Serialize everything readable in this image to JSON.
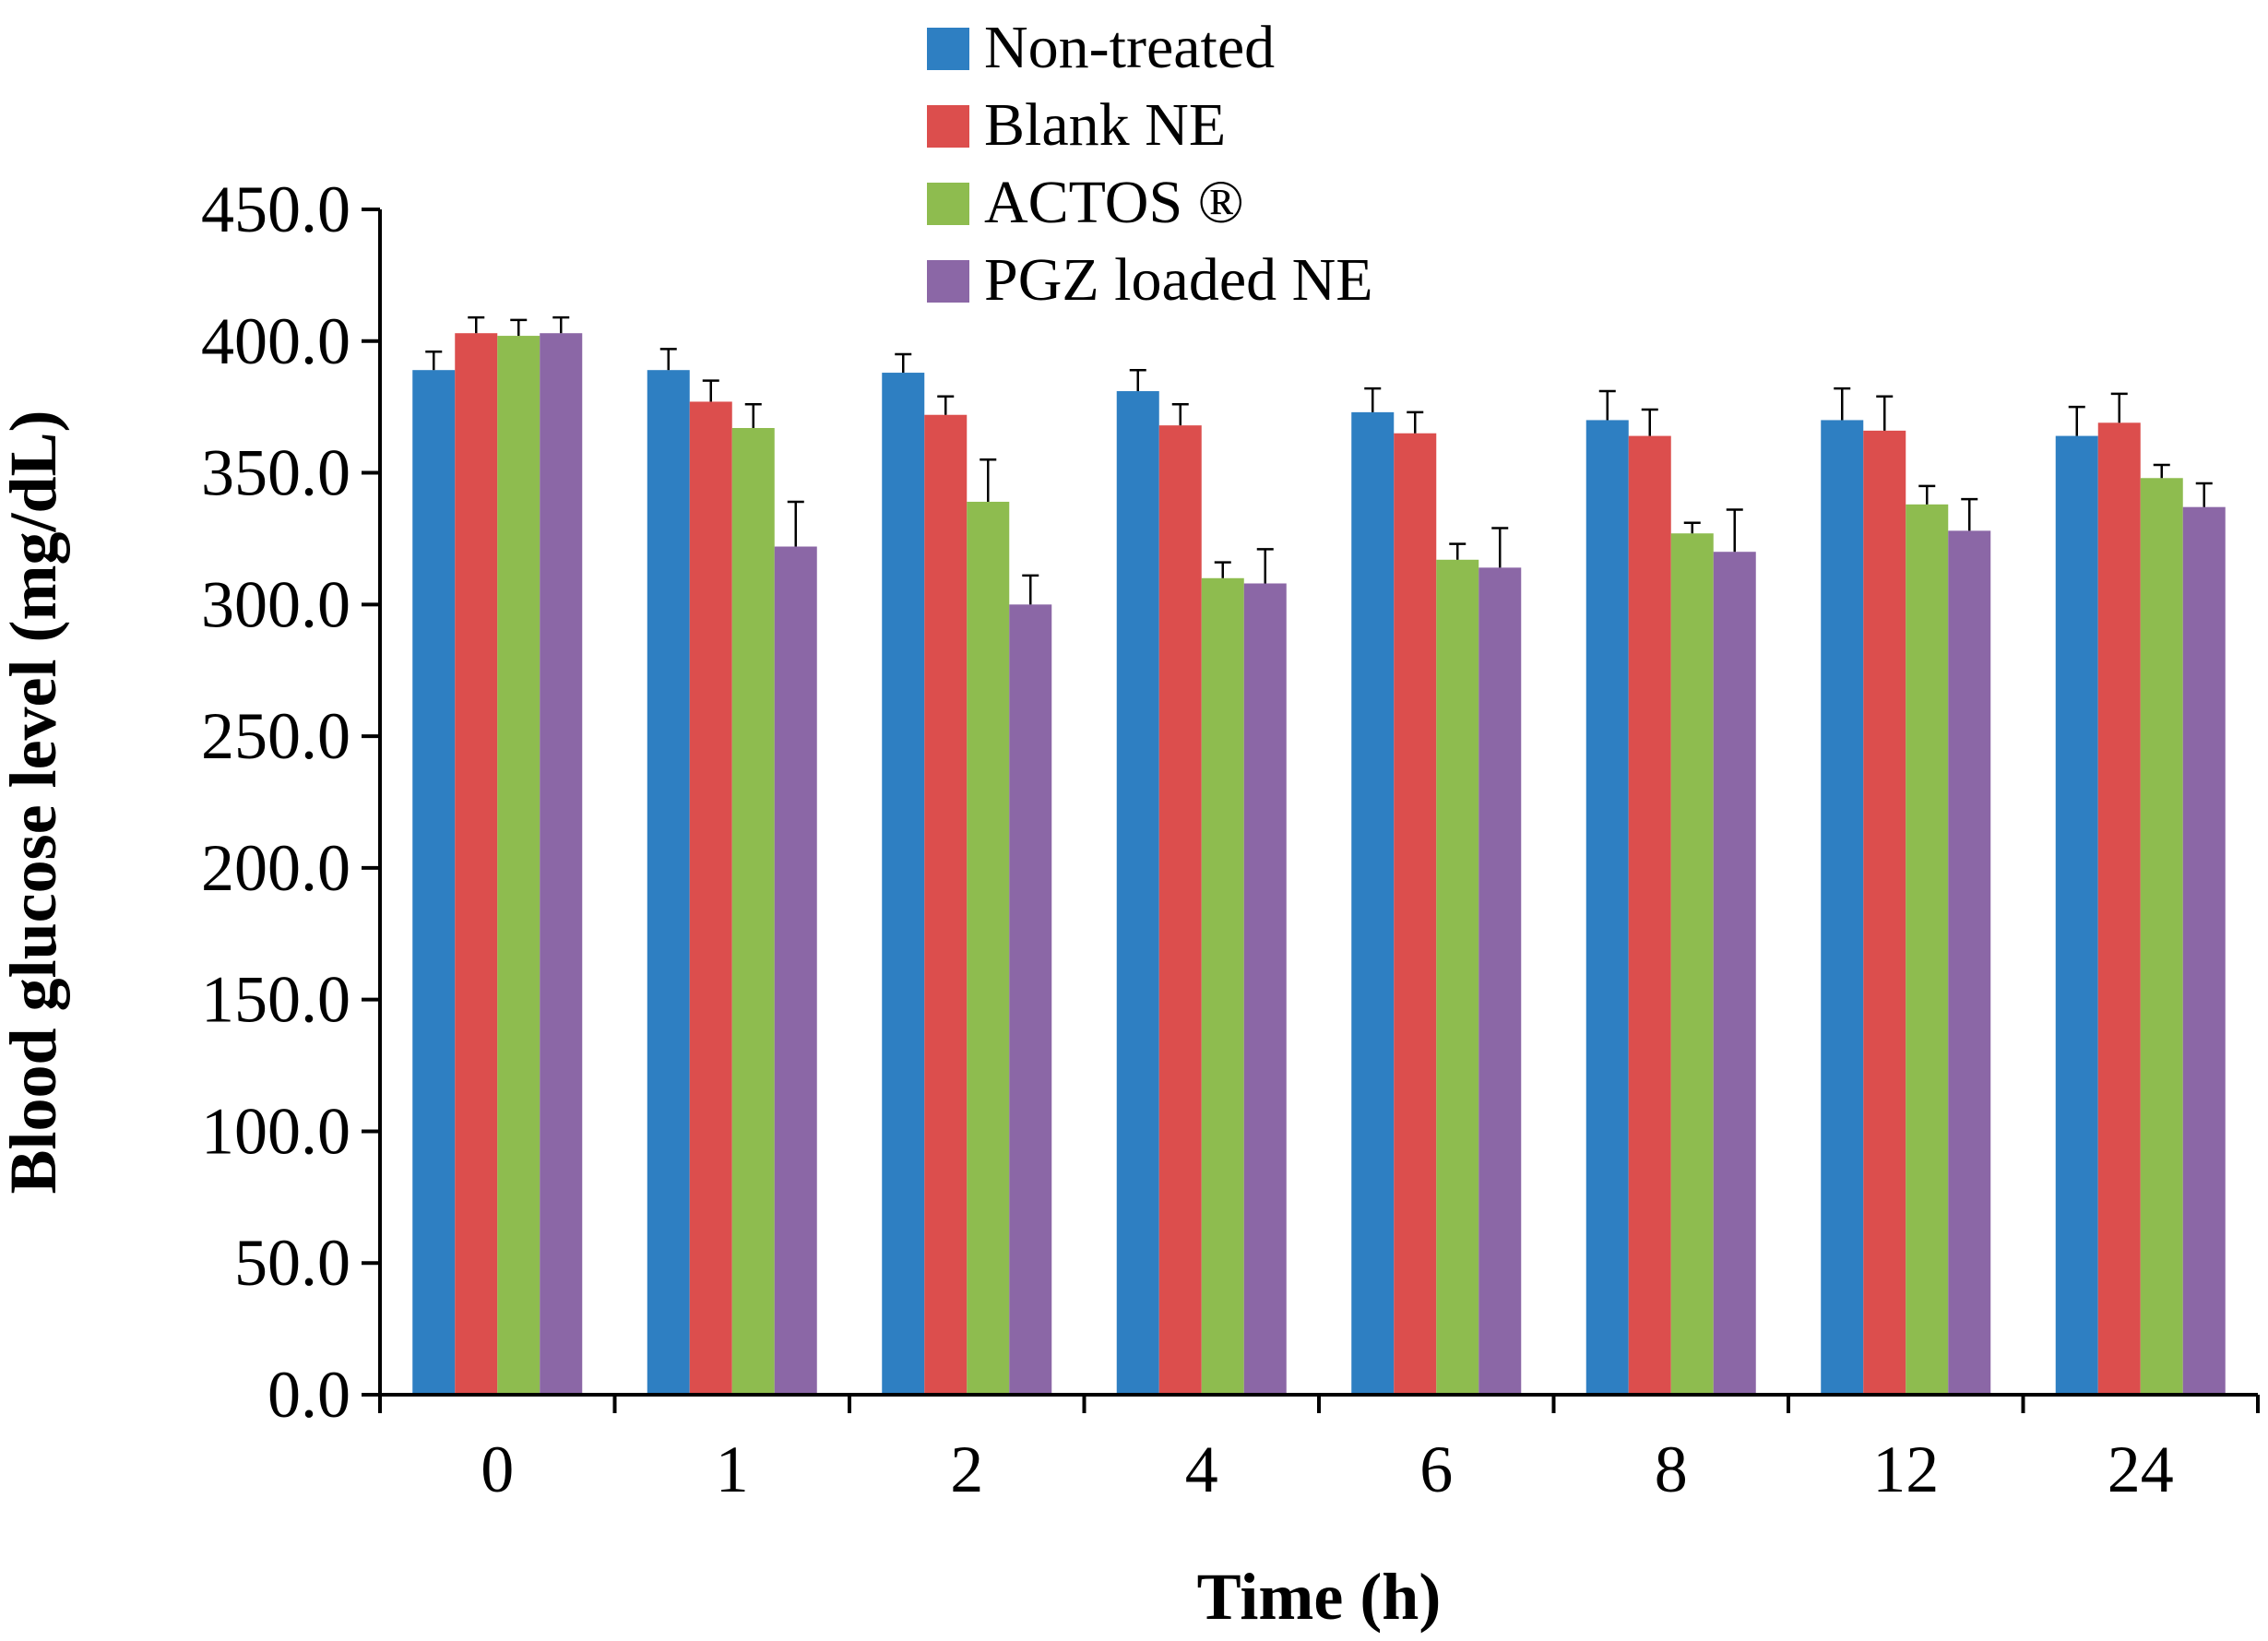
{
  "chart_data": {
    "type": "bar",
    "xlabel": "Time (h)",
    "ylabel": "Blood glucose level (mg/dL)",
    "ylim": [
      0,
      450
    ],
    "yticks": [
      "0.0",
      "50.0",
      "100.0",
      "150.0",
      "200.0",
      "250.0",
      "300.0",
      "350.0",
      "400.0",
      "450.0"
    ],
    "categories": [
      "0",
      "1",
      "2",
      "4",
      "6",
      "8",
      "12",
      "24"
    ],
    "grid": false,
    "legend_position": "top-center",
    "error_bars": true,
    "series": [
      {
        "name": "Non-treated",
        "color": "#2e7fc2",
        "values": [
          389,
          389,
          388,
          381,
          373,
          370,
          370,
          364
        ],
        "errors": [
          7,
          8,
          7,
          8,
          9,
          11,
          12,
          11
        ]
      },
      {
        "name": "Blank NE",
        "color": "#dc4e4d",
        "values": [
          403,
          377,
          372,
          368,
          365,
          364,
          366,
          369
        ],
        "errors": [
          6,
          8,
          7,
          8,
          8,
          10,
          13,
          11
        ]
      },
      {
        "name": "ACTOS ®",
        "color": "#8ebc4f",
        "values": [
          402,
          367,
          339,
          310,
          317,
          327,
          338,
          348
        ],
        "errors": [
          6,
          9,
          16,
          6,
          6,
          4,
          7,
          5
        ]
      },
      {
        "name": "PGZ loaded NE",
        "color": "#8b67a6",
        "values": [
          403,
          322,
          300,
          308,
          314,
          320,
          328,
          337
        ],
        "errors": [
          6,
          17,
          11,
          13,
          15,
          16,
          12,
          9
        ]
      }
    ]
  }
}
